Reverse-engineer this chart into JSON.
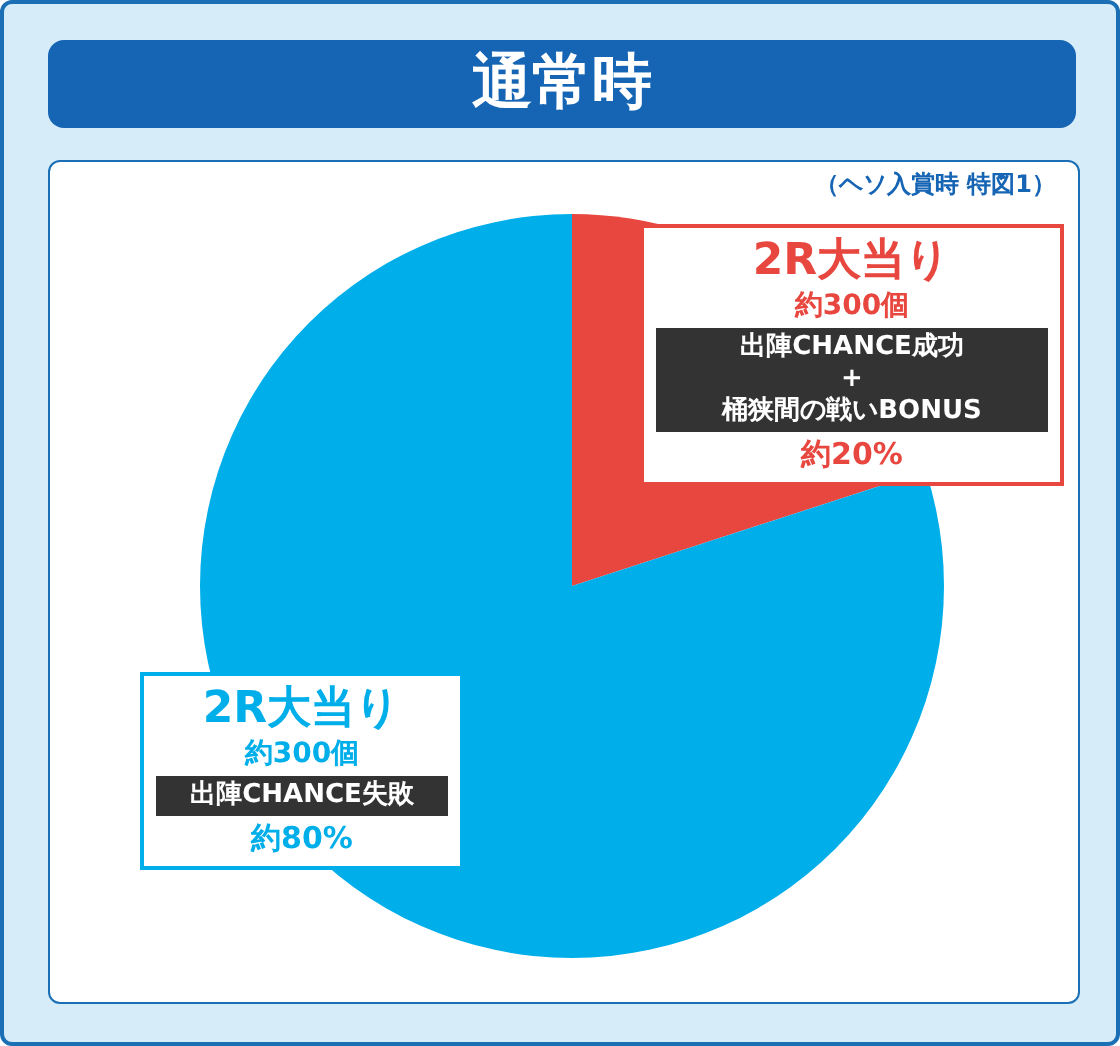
{
  "chart_data": {
    "type": "pie",
    "title": "通常時",
    "subtitle": "（ヘソ入賞時 特図1）",
    "categories": [
      "2R大当り",
      "2R大当り"
    ],
    "values": [
      20,
      80
    ],
    "colors": [
      "#e8473f",
      "#00aeea"
    ],
    "value_labels": [
      "約20%",
      "約80%"
    ],
    "annotations": [
      "約300個",
      "出陣CHANCE成功\n+\n桶狭間の戦いBONUS",
      "約300個",
      "出陣CHANCE失敗"
    ]
  }
}
